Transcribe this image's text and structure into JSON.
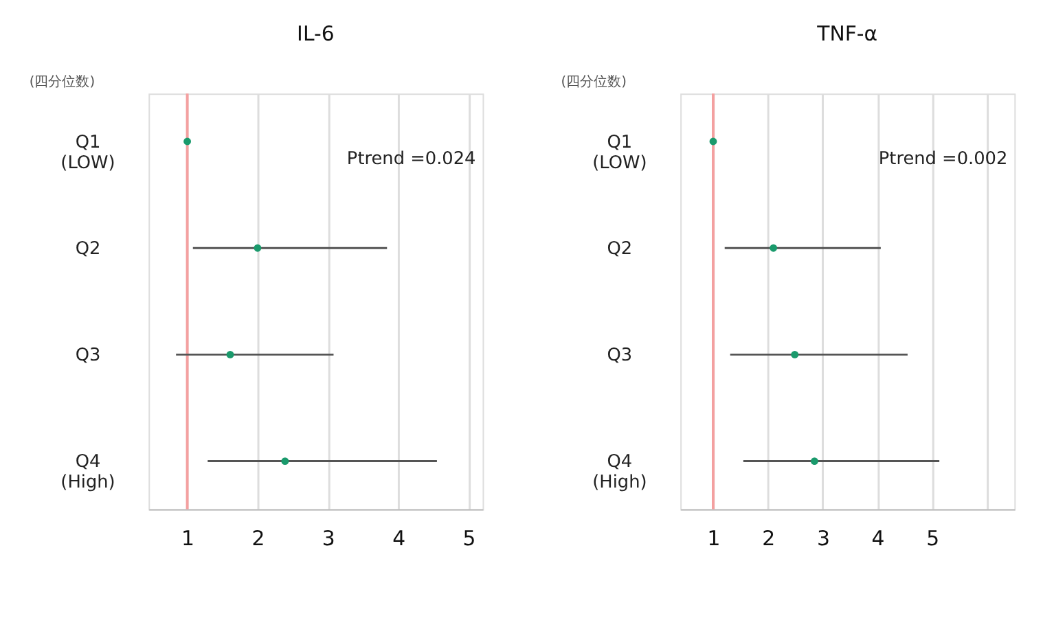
{
  "chart_data": [
    {
      "type": "scatter",
      "title": "IL-6",
      "ylabel": "(四分位数)",
      "orientation": "horizontal",
      "categories": [
        "Q1\n(LOW)",
        "Q2",
        "Q3",
        "Q4\n(High)"
      ],
      "values": [
        1.0,
        2.0,
        1.61,
        2.39
      ],
      "errors": [
        null,
        [
          1.08,
          3.84
        ],
        [
          0.84,
          3.08
        ],
        [
          1.29,
          4.55
        ]
      ],
      "color": "#1a9a6c",
      "marker": "circle",
      "xlim": [
        0.45,
        5.2
      ],
      "xticks": [
        1,
        2,
        3,
        4,
        5
      ],
      "grid": "x",
      "ref_lines": [
        {
          "axis": "x",
          "value": 1,
          "color": "#f4a0a0"
        }
      ],
      "annotations": [
        "Ptrend =0.024"
      ]
    },
    {
      "type": "scatter",
      "title": "TNF-α",
      "ylabel": "(四分位数)",
      "orientation": "horizontal",
      "categories": [
        "Q1\n(LOW)",
        "Q2",
        "Q3",
        "Q4\n(High)"
      ],
      "values": [
        1.0,
        2.1,
        2.49,
        2.85
      ],
      "errors": [
        null,
        [
          1.21,
          4.06
        ],
        [
          1.31,
          4.55
        ],
        [
          1.55,
          5.13
        ]
      ],
      "color": "#1a9a6c",
      "marker": "circle",
      "xlim": [
        0.4,
        6.5
      ],
      "xticks": [
        1,
        2,
        3,
        4,
        5,
        {
          "value": 6,
          "label": null
        }
      ],
      "grid": "x",
      "ref_lines": [
        {
          "axis": "x",
          "value": 1,
          "color": "#f4a0a0"
        }
      ],
      "annotations": [
        "Ptrend =0.002"
      ]
    }
  ]
}
